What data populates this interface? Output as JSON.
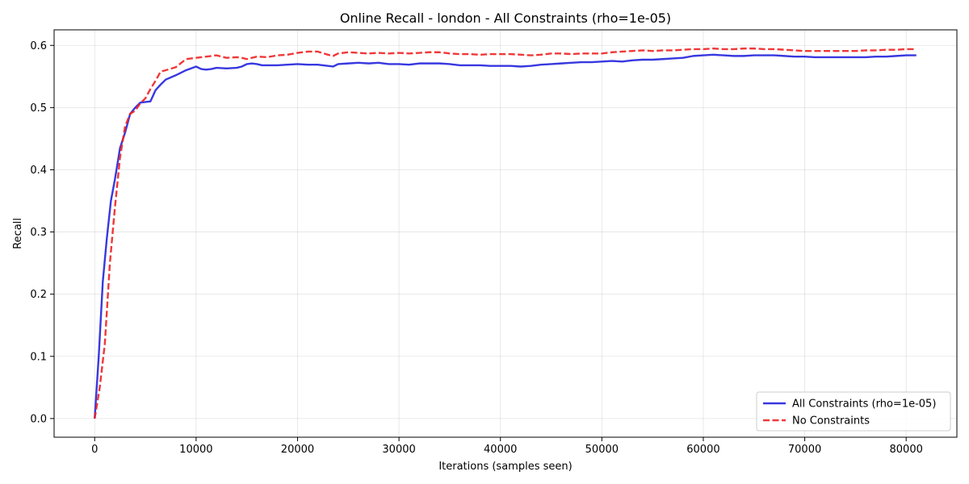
{
  "chart_data": {
    "type": "line",
    "title": "Online Recall - london - All Constraints (rho=1e-05)",
    "xlabel": "Iterations (samples seen)",
    "ylabel": "Recall",
    "xlim": [
      -4000,
      85000
    ],
    "ylim": [
      -0.03,
      0.625
    ],
    "xticks": [
      0,
      10000,
      20000,
      30000,
      40000,
      50000,
      60000,
      70000,
      80000
    ],
    "xtick_labels": [
      "0",
      "10000",
      "20000",
      "30000",
      "40000",
      "50000",
      "60000",
      "70000",
      "80000"
    ],
    "yticks": [
      0.0,
      0.1,
      0.2,
      0.3,
      0.4,
      0.5,
      0.6
    ],
    "ytick_labels": [
      "0.0",
      "0.1",
      "0.2",
      "0.3",
      "0.4",
      "0.5",
      "0.6"
    ],
    "grid": true,
    "legend_position": "bottom-right",
    "series": [
      {
        "name": "All Constraints (rho=1e-05)",
        "color": "#2222dd",
        "style": "solid",
        "x": [
          0,
          400,
          800,
          1200,
          1600,
          2000,
          2500,
          3000,
          3500,
          4000,
          4500,
          5000,
          5500,
          6000,
          6500,
          7000,
          8000,
          9000,
          10000,
          10500,
          11000,
          11500,
          12000,
          13000,
          14000,
          14500,
          15000,
          15500,
          16000,
          16500,
          17000,
          18000,
          19000,
          20000,
          21000,
          22000,
          23000,
          23500,
          24000,
          25000,
          26000,
          27000,
          28000,
          28500,
          29000,
          30000,
          31000,
          32000,
          33000,
          34000,
          35000,
          36000,
          37000,
          38000,
          39000,
          40000,
          41000,
          42000,
          43000,
          44000,
          45000,
          46000,
          47000,
          48000,
          49000,
          50000,
          51000,
          52000,
          53000,
          54000,
          55000,
          56000,
          57000,
          58000,
          59000,
          60000,
          61000,
          62000,
          63000,
          64000,
          65000,
          66000,
          67000,
          68000,
          69000,
          70000,
          71000,
          72000,
          73000,
          74000,
          75000,
          76000,
          77000,
          78000,
          79000,
          80000,
          81000
        ],
        "y": [
          0.0,
          0.1,
          0.22,
          0.29,
          0.35,
          0.385,
          0.435,
          0.46,
          0.49,
          0.5,
          0.508,
          0.509,
          0.51,
          0.528,
          0.537,
          0.545,
          0.552,
          0.56,
          0.566,
          0.562,
          0.561,
          0.562,
          0.564,
          0.563,
          0.564,
          0.566,
          0.57,
          0.571,
          0.57,
          0.568,
          0.568,
          0.568,
          0.569,
          0.57,
          0.569,
          0.569,
          0.567,
          0.566,
          0.57,
          0.571,
          0.572,
          0.571,
          0.572,
          0.571,
          0.57,
          0.57,
          0.569,
          0.571,
          0.571,
          0.571,
          0.57,
          0.568,
          0.568,
          0.568,
          0.567,
          0.567,
          0.567,
          0.566,
          0.567,
          0.569,
          0.57,
          0.571,
          0.572,
          0.573,
          0.573,
          0.574,
          0.575,
          0.574,
          0.576,
          0.577,
          0.577,
          0.578,
          0.579,
          0.58,
          0.583,
          0.584,
          0.585,
          0.584,
          0.583,
          0.583,
          0.584,
          0.584,
          0.584,
          0.583,
          0.582,
          0.582,
          0.581,
          0.581,
          0.581,
          0.581,
          0.581,
          0.581,
          0.582,
          0.582,
          0.583,
          0.584,
          0.584
        ]
      },
      {
        "name": "No Constraints",
        "color": "#ee2222",
        "style": "dashed",
        "x": [
          0,
          500,
          1000,
          1500,
          2000,
          2500,
          3000,
          3500,
          4000,
          4500,
          5000,
          5500,
          6000,
          6500,
          7000,
          8000,
          9000,
          10000,
          11000,
          11500,
          12000,
          13000,
          14000,
          14500,
          15000,
          16000,
          17000,
          18000,
          19000,
          20000,
          21000,
          22000,
          23000,
          23500,
          24000,
          25000,
          26000,
          27000,
          28000,
          29000,
          30000,
          31000,
          32000,
          33000,
          34000,
          35000,
          36000,
          37000,
          38000,
          39000,
          40000,
          41000,
          42000,
          43000,
          44000,
          45000,
          46000,
          47000,
          48000,
          49000,
          50000,
          51000,
          52000,
          53000,
          54000,
          55000,
          56000,
          57000,
          58000,
          59000,
          60000,
          61000,
          62000,
          63000,
          64000,
          65000,
          66000,
          67000,
          68000,
          69000,
          70000,
          71000,
          72000,
          73000,
          74000,
          75000,
          76000,
          77000,
          78000,
          79000,
          80000,
          81000
        ],
        "y": [
          0.0,
          0.05,
          0.12,
          0.25,
          0.34,
          0.42,
          0.47,
          0.49,
          0.495,
          0.507,
          0.515,
          0.53,
          0.543,
          0.558,
          0.56,
          0.565,
          0.578,
          0.58,
          0.582,
          0.583,
          0.584,
          0.58,
          0.581,
          0.58,
          0.578,
          0.582,
          0.581,
          0.584,
          0.585,
          0.588,
          0.59,
          0.59,
          0.585,
          0.583,
          0.587,
          0.589,
          0.588,
          0.587,
          0.588,
          0.587,
          0.588,
          0.587,
          0.588,
          0.589,
          0.589,
          0.587,
          0.586,
          0.586,
          0.585,
          0.586,
          0.586,
          0.586,
          0.585,
          0.584,
          0.585,
          0.587,
          0.587,
          0.586,
          0.587,
          0.587,
          0.587,
          0.589,
          0.59,
          0.591,
          0.592,
          0.591,
          0.592,
          0.592,
          0.593,
          0.594,
          0.594,
          0.595,
          0.594,
          0.594,
          0.595,
          0.595,
          0.594,
          0.594,
          0.593,
          0.592,
          0.591,
          0.591,
          0.591,
          0.591,
          0.591,
          0.591,
          0.592,
          0.592,
          0.593,
          0.593,
          0.594,
          0.594
        ]
      }
    ]
  }
}
